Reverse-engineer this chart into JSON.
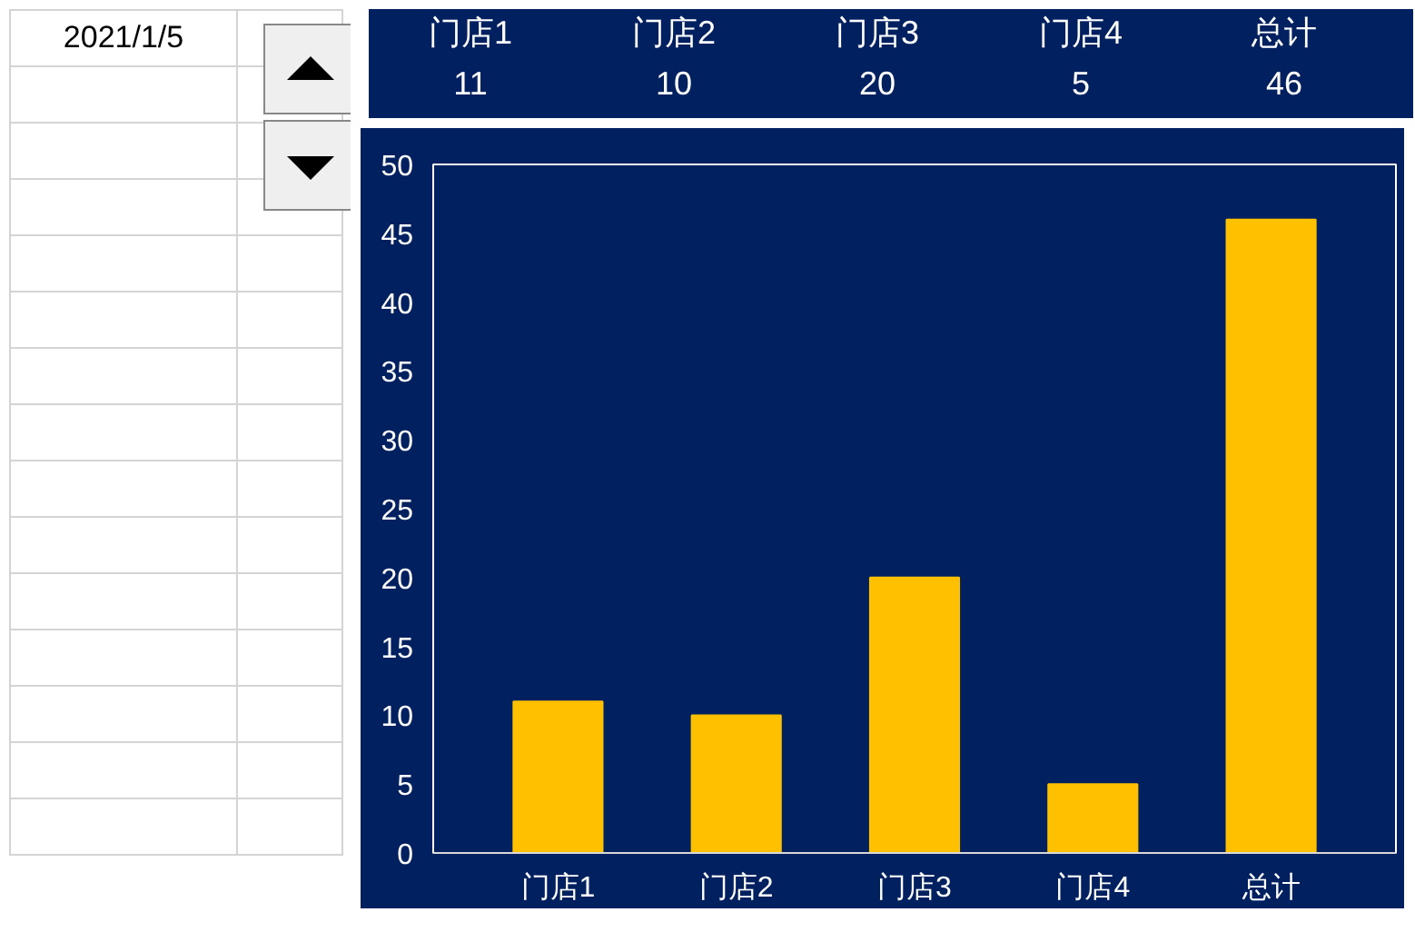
{
  "chart_data": {
    "type": "bar",
    "categories": [
      "门店1",
      "门店2",
      "门店3",
      "门店4",
      "总计"
    ],
    "values": [
      11,
      10,
      20,
      5,
      46
    ],
    "color": "#ffc000",
    "ylim": [
      0,
      50
    ],
    "yticks": [
      0,
      5,
      10,
      15,
      20,
      25,
      30,
      35,
      40,
      45,
      50
    ],
    "grid": false,
    "data_labels": true,
    "annotations": [
      "2021/1/5"
    ]
  }
}
